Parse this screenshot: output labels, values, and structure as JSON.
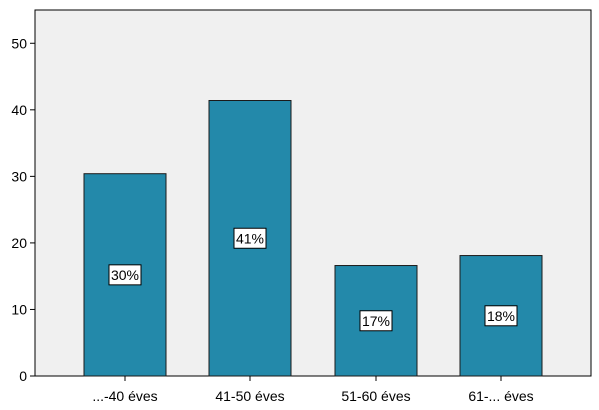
{
  "chart_data": {
    "type": "bar",
    "categories": [
      "...-40 éves",
      "41-50 éves",
      "51-60 éves",
      "61-... éves"
    ],
    "values": [
      30.4,
      41.4,
      16.6,
      18.1
    ],
    "data_labels": [
      "30%",
      "41%",
      "17%",
      "18%"
    ],
    "title": "",
    "xlabel": "",
    "ylabel": "",
    "ylim": [
      0,
      55
    ],
    "yticks": [
      0,
      10,
      20,
      30,
      40,
      50
    ],
    "grid": false,
    "legend": "none",
    "colors": {
      "bar_fill": "#2389aa",
      "bar_stroke": "#1a1a1a",
      "plot_background": "#f0f0f0",
      "axis": "#000000",
      "label_box": "#ffffff"
    }
  }
}
